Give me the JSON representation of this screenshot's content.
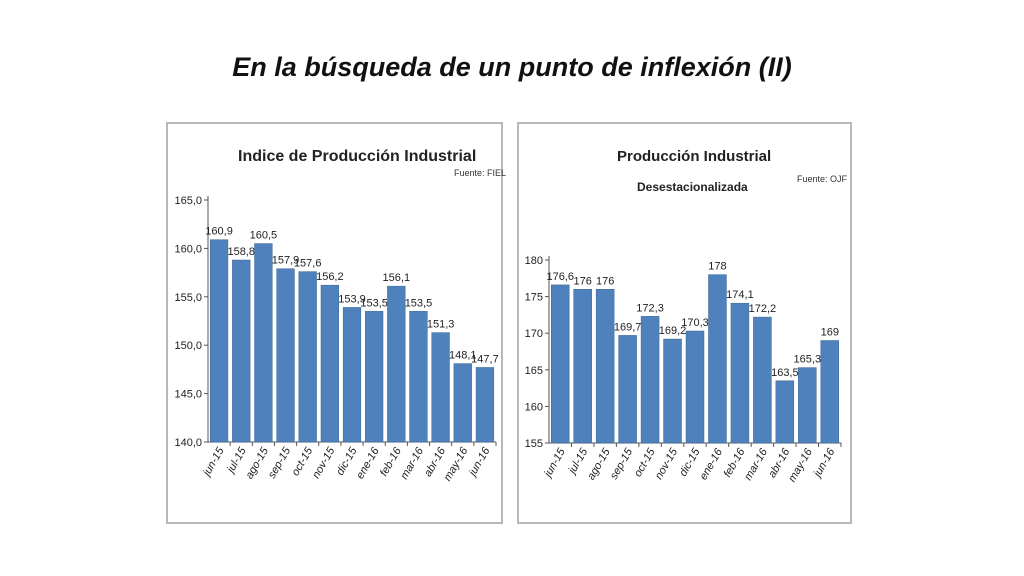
{
  "slide": {
    "title": "En la búsqueda de un punto de inflexión (II)"
  },
  "colors": {
    "bar": "#4f81bd",
    "bar_edge": "#3a6595",
    "axis": "#555555",
    "text": "#222222"
  },
  "chart_data": [
    {
      "type": "bar",
      "title": "Indice de Producción Industrial",
      "source": "Fuente: FIEL",
      "categories": [
        "jun-15",
        "jul-15",
        "ago-15",
        "sep-15",
        "oct-15",
        "nov-15",
        "dic-15",
        "ene-16",
        "feb-16",
        "mar-16",
        "abr-16",
        "may-16",
        "jun-16"
      ],
      "values": [
        160.9,
        158.8,
        160.5,
        157.9,
        157.6,
        156.2,
        153.9,
        153.5,
        156.1,
        153.5,
        151.3,
        148.1,
        147.7
      ],
      "value_labels": [
        "160,9",
        "158,8",
        "160,5",
        "157,9",
        "157,6",
        "156,2",
        "153,9",
        "153,5",
        "156,1",
        "153,5",
        "151,3",
        "148,1",
        "147,7"
      ],
      "ylim": [
        140,
        165
      ],
      "yticks": [
        "140,0",
        "145,0",
        "150,0",
        "155,0",
        "160,0",
        "165,0"
      ]
    },
    {
      "type": "bar",
      "title": "Producción Industrial",
      "subtitle": "Desestacionalizada",
      "source": "Fuente: OJF",
      "categories": [
        "jun-15",
        "jul-15",
        "ago-15",
        "sep-15",
        "oct-15",
        "nov-15",
        "dic-15",
        "ene-16",
        "feb-16",
        "mar-16",
        "abr-16",
        "may-16",
        "jun-16"
      ],
      "values": [
        176.6,
        176,
        176,
        169.7,
        172.3,
        169.2,
        170.3,
        178,
        174.1,
        172.2,
        163.5,
        165.3,
        169
      ],
      "value_labels": [
        "176,6",
        "176",
        "176",
        "169,7",
        "172,3",
        "169,2",
        "170,3",
        "178",
        "174,1",
        "172,2",
        "163,5",
        "165,3",
        "169"
      ],
      "ylim": [
        155,
        180
      ],
      "yticks": [
        "155",
        "160",
        "165",
        "170",
        "175",
        "180"
      ]
    }
  ]
}
